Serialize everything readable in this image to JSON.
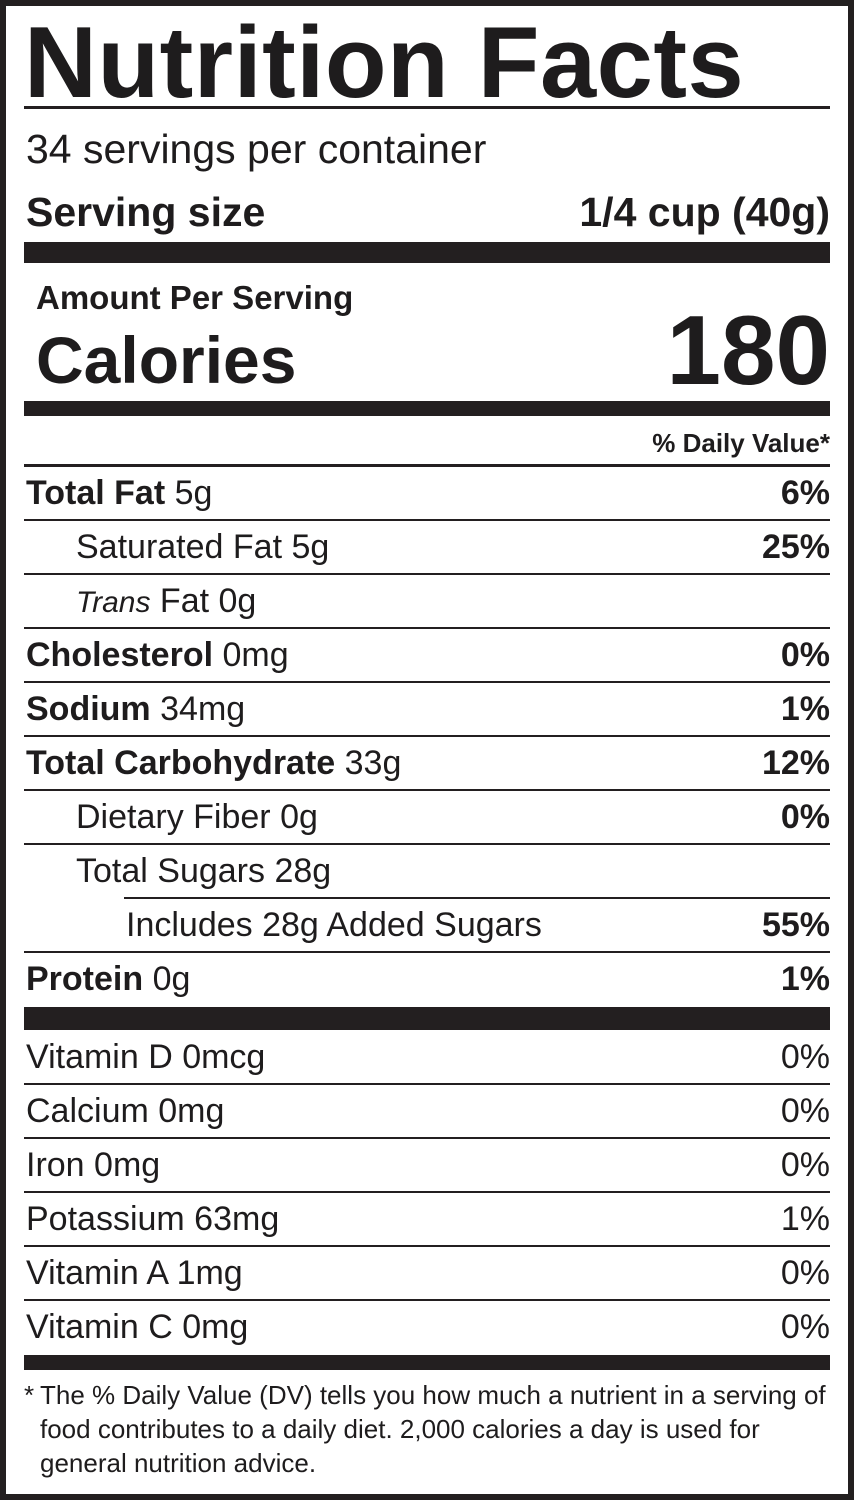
{
  "title": "Nutrition Facts",
  "servings_per_container": "34 servings per container",
  "serving_size": {
    "label": "Serving size",
    "value": "1/4 cup (40g)"
  },
  "amount_per_serving": "Amount Per Serving",
  "calories": {
    "label": "Calories",
    "value": "180"
  },
  "daily_value_header": "% Daily Value*",
  "nutrients": [
    {
      "name": "Total Fat",
      "amount": "5g",
      "dv": "6%"
    },
    {
      "name": "Saturated Fat",
      "amount": "5g",
      "dv": "25%"
    },
    {
      "name_italic": "Trans",
      "name": "Fat",
      "amount": "0g",
      "dv": ""
    },
    {
      "name": "Cholesterol",
      "amount": "0mg",
      "dv": "0%"
    },
    {
      "name": "Sodium",
      "amount": "34mg",
      "dv": "1%"
    },
    {
      "name": "Total Carbohydrate",
      "amount": "33g",
      "dv": "12%"
    },
    {
      "name": "Dietary Fiber",
      "amount": "0g",
      "dv": "0%"
    },
    {
      "name": "Total Sugars",
      "amount": "28g",
      "dv": ""
    },
    {
      "name": "Includes 28g Added Sugars",
      "amount": "",
      "dv": "55%"
    },
    {
      "name": "Protein",
      "amount": "0g",
      "dv": "1%"
    }
  ],
  "vitamins": [
    {
      "label": "Vitamin D 0mcg",
      "dv": "0%"
    },
    {
      "label": "Calcium 0mg",
      "dv": "0%"
    },
    {
      "label": "Iron 0mg",
      "dv": "0%"
    },
    {
      "label": "Potassium 63mg",
      "dv": "1%"
    },
    {
      "label": "Vitamin A 1mg",
      "dv": "0%"
    },
    {
      "label": "Vitamin C 0mg",
      "dv": "0%"
    }
  ],
  "footnote": {
    "star": "*",
    "text": "The % Daily Value (DV) tells you how much a nutrient in a serving of food contributes to a daily diet. 2,000 calories a day is used for general nutrition advice."
  }
}
